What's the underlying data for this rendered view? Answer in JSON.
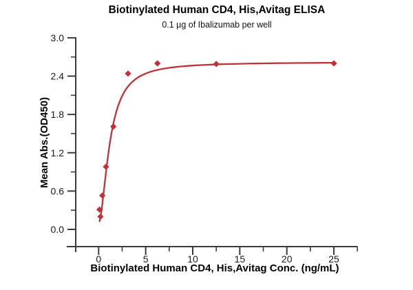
{
  "chart_data": {
    "type": "scatter",
    "title": "Biotinylated Human CD4, His,Avitag ELISA",
    "subtitle": "0.1 µg of Ibalizumab per well",
    "xlabel": "Biotinylated Human CD4, His,Avitag Conc. (ng/mL)",
    "ylabel": "Mean Abs.(OD450)",
    "x": [
      0.098,
      0.195,
      0.391,
      0.781,
      1.563,
      3.125,
      6.25,
      12.5,
      25
    ],
    "y": [
      0.31,
      0.2,
      0.53,
      0.98,
      1.61,
      2.44,
      2.6,
      2.59,
      2.6
    ],
    "xlim": [
      -2.5,
      27.5
    ],
    "ylim": [
      -0.27,
      3.0
    ],
    "x_tick_values": [
      0,
      5,
      10,
      15,
      20,
      25
    ],
    "x_tick_labels": [
      "0",
      "5",
      "10",
      "15",
      "20",
      "25"
    ],
    "x_minor_ticks": [
      2.5,
      7.5,
      12.5,
      17.5,
      22.5,
      27.5
    ],
    "y_tick_values": [
      0.0,
      0.6,
      1.2,
      1.8,
      2.4,
      3.0
    ],
    "y_tick_labels": [
      "0.0",
      "0.6",
      "1.2",
      "1.8",
      "2.4",
      "3.0"
    ],
    "y_minor_ticks": [
      0.3,
      0.9,
      1.5,
      2.1,
      2.7
    ],
    "grid": false,
    "legend": false,
    "marker": "diamond",
    "curve_fit": {
      "model": "4PL",
      "bottom": 0.1,
      "top": 2.62,
      "ec50": 1.2,
      "hill": 1.8
    },
    "colors": {
      "series": "#BE3137",
      "axis": "#3A3A3A",
      "text": "#1A1A1A"
    }
  }
}
